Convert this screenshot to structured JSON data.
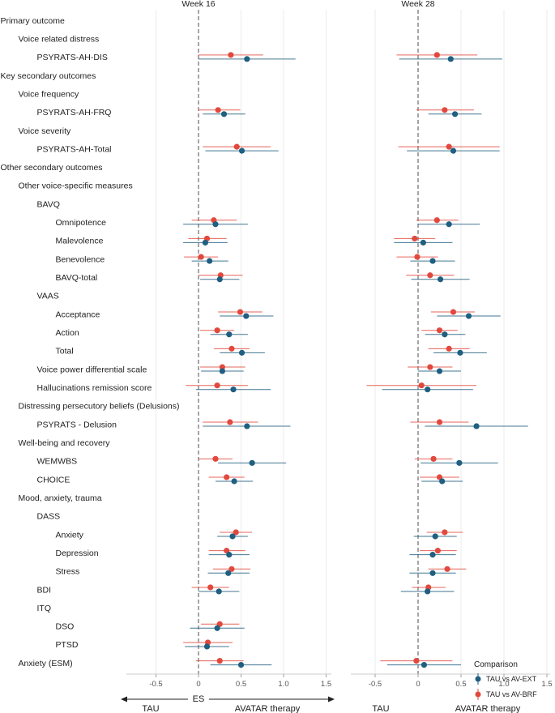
{
  "chart_data": {
    "type": "forest",
    "panels": [
      "Week 16",
      "Week 28"
    ],
    "xlabel_center": "ES",
    "xlabel_left": "TAU",
    "xlabel_right": "AVATAR therapy",
    "xlim": [
      -0.85,
      1.6
    ],
    "xticks": [
      -0.5,
      0.0,
      0.5,
      1.0,
      1.5
    ],
    "xtick_labels": [
      "-0.5",
      "0",
      "0.5",
      "1.0",
      "1.5"
    ],
    "colors": {
      "ext": "#1f5f80",
      "brf": "#e2493e",
      "grid": "#e6e6e6",
      "zero": "#777777"
    },
    "legend": {
      "title": "Comparison",
      "items": [
        "TAU vs AV-EXT",
        "TAU vs AV-BRF"
      ],
      "position": "bottom-right"
    },
    "rows": [
      {
        "label": "Primary outcome",
        "level": 0
      },
      {
        "label": "Voice related distress",
        "level": 1
      },
      {
        "label": "PSYRATS-AH-DIS",
        "level": 2,
        "w16": {
          "ext": [
            0.57,
            0.0,
            1.14
          ],
          "brf": [
            0.38,
            0.0,
            0.76
          ]
        },
        "w28": {
          "ext": [
            0.38,
            -0.22,
            0.98
          ],
          "brf": [
            0.22,
            -0.25,
            0.69
          ]
        }
      },
      {
        "label": "Key secondary outcomes",
        "level": 0
      },
      {
        "label": "Voice frequency",
        "level": 1
      },
      {
        "label": "PSYRATS-AH-FRQ",
        "level": 2,
        "w16": {
          "ext": [
            0.3,
            0.05,
            0.55
          ],
          "brf": [
            0.23,
            0.0,
            0.49
          ]
        },
        "w28": {
          "ext": [
            0.43,
            0.12,
            0.74
          ],
          "brf": [
            0.31,
            -0.02,
            0.65
          ]
        }
      },
      {
        "label": "Voice severity",
        "level": 1
      },
      {
        "label": "PSYRATS-AH-Total",
        "level": 2,
        "w16": {
          "ext": [
            0.51,
            0.08,
            0.94
          ],
          "brf": [
            0.45,
            0.05,
            0.85
          ]
        },
        "w28": {
          "ext": [
            0.41,
            -0.13,
            0.95
          ],
          "brf": [
            0.36,
            -0.23,
            0.95
          ]
        }
      },
      {
        "label": "Other secondary outcomes",
        "level": 0
      },
      {
        "label": "Other voice-specific measures",
        "level": 1
      },
      {
        "label": "BAVQ",
        "level": 2
      },
      {
        "label": "Omnipotence",
        "level": 3,
        "w16": {
          "ext": [
            0.2,
            -0.18,
            0.58
          ],
          "brf": [
            0.18,
            -0.08,
            0.45
          ]
        },
        "w28": {
          "ext": [
            0.36,
            0.0,
            0.72
          ],
          "brf": [
            0.22,
            -0.02,
            0.47
          ]
        }
      },
      {
        "label": "Malevolence",
        "level": 3,
        "w16": {
          "ext": [
            0.08,
            -0.18,
            0.34
          ],
          "brf": [
            0.1,
            -0.12,
            0.33
          ]
        },
        "w28": {
          "ext": [
            0.06,
            -0.28,
            0.4
          ],
          "brf": [
            -0.04,
            -0.28,
            0.2
          ]
        }
      },
      {
        "label": "Benevolence",
        "level": 3,
        "w16": {
          "ext": [
            0.13,
            -0.08,
            0.35
          ],
          "brf": [
            0.03,
            -0.17,
            0.23
          ]
        },
        "w28": {
          "ext": [
            0.17,
            -0.09,
            0.43
          ],
          "brf": [
            -0.01,
            -0.25,
            0.23
          ]
        }
      },
      {
        "label": "BAVQ-total",
        "level": 3,
        "w16": {
          "ext": [
            0.25,
            0.02,
            0.48
          ],
          "brf": [
            0.26,
            0.0,
            0.52
          ]
        },
        "w28": {
          "ext": [
            0.26,
            -0.08,
            0.6
          ],
          "brf": [
            0.14,
            -0.14,
            0.42
          ]
        }
      },
      {
        "label": "VAAS",
        "level": 2
      },
      {
        "label": "Acceptance",
        "level": 3,
        "w16": {
          "ext": [
            0.56,
            0.25,
            0.88
          ],
          "brf": [
            0.49,
            0.23,
            0.75
          ]
        },
        "w28": {
          "ext": [
            0.59,
            0.22,
            0.96
          ],
          "brf": [
            0.41,
            0.15,
            0.66
          ]
        }
      },
      {
        "label": "Action",
        "level": 3,
        "w16": {
          "ext": [
            0.36,
            0.14,
            0.58
          ],
          "brf": [
            0.22,
            0.02,
            0.42
          ]
        },
        "w28": {
          "ext": [
            0.31,
            0.08,
            0.55
          ],
          "brf": [
            0.25,
            0.04,
            0.46
          ]
        }
      },
      {
        "label": "Total",
        "level": 3,
        "w16": {
          "ext": [
            0.51,
            0.25,
            0.78
          ],
          "brf": [
            0.39,
            0.18,
            0.6
          ]
        },
        "w28": {
          "ext": [
            0.49,
            0.18,
            0.8
          ],
          "brf": [
            0.36,
            0.12,
            0.6
          ]
        }
      },
      {
        "label": "Voice power differential scale",
        "level": 2,
        "w16": {
          "ext": [
            0.28,
            0.03,
            0.53
          ],
          "brf": [
            0.28,
            0.02,
            0.55
          ]
        },
        "w28": {
          "ext": [
            0.25,
            0.0,
            0.5
          ],
          "brf": [
            0.14,
            -0.12,
            0.4
          ]
        }
      },
      {
        "label": "Hallucinations remission score",
        "level": 2,
        "w16": {
          "ext": [
            0.41,
            -0.03,
            0.85
          ],
          "brf": [
            0.22,
            -0.15,
            0.58
          ]
        },
        "w28": {
          "ext": [
            0.11,
            -0.42,
            0.64
          ],
          "brf": [
            0.04,
            -0.6,
            0.68
          ]
        }
      },
      {
        "label": "Distressing persecutory beliefs (Delusions)",
        "level": 1
      },
      {
        "label": "PSYRATS - Delusion",
        "level": 2,
        "w16": {
          "ext": [
            0.57,
            0.05,
            1.08
          ],
          "brf": [
            0.37,
            0.05,
            0.7
          ]
        },
        "w28": {
          "ext": [
            0.68,
            0.08,
            1.28
          ],
          "brf": [
            0.25,
            -0.09,
            0.59
          ]
        }
      },
      {
        "label": "Well-being and recovery",
        "level": 1
      },
      {
        "label": "WEMWBS",
        "level": 2,
        "w16": {
          "ext": [
            0.63,
            0.23,
            1.03
          ],
          "brf": [
            0.2,
            0.0,
            0.4
          ]
        },
        "w28": {
          "ext": [
            0.48,
            0.03,
            0.93
          ],
          "brf": [
            0.18,
            -0.04,
            0.4
          ]
        }
      },
      {
        "label": "CHOICE",
        "level": 2,
        "w16": {
          "ext": [
            0.42,
            0.2,
            0.64
          ],
          "brf": [
            0.33,
            0.12,
            0.54
          ]
        },
        "w28": {
          "ext": [
            0.28,
            0.04,
            0.52
          ],
          "brf": [
            0.25,
            0.02,
            0.48
          ]
        }
      },
      {
        "label": "Mood, anxiety, trauma",
        "level": 1
      },
      {
        "label": "DASS",
        "level": 2
      },
      {
        "label": "Anxiety",
        "level": 3,
        "w16": {
          "ext": [
            0.4,
            0.22,
            0.58
          ],
          "brf": [
            0.44,
            0.25,
            0.63
          ]
        },
        "w28": {
          "ext": [
            0.2,
            -0.05,
            0.45
          ],
          "brf": [
            0.31,
            0.1,
            0.52
          ]
        }
      },
      {
        "label": "Depression",
        "level": 3,
        "w16": {
          "ext": [
            0.36,
            0.12,
            0.6
          ],
          "brf": [
            0.33,
            0.12,
            0.55
          ]
        },
        "w28": {
          "ext": [
            0.17,
            -0.1,
            0.44
          ],
          "brf": [
            0.23,
            0.02,
            0.45
          ]
        }
      },
      {
        "label": "Stress",
        "level": 3,
        "w16": {
          "ext": [
            0.35,
            0.11,
            0.6
          ],
          "brf": [
            0.39,
            0.17,
            0.61
          ]
        },
        "w28": {
          "ext": [
            0.17,
            -0.1,
            0.44
          ],
          "brf": [
            0.34,
            0.12,
            0.56
          ]
        }
      },
      {
        "label": "BDI",
        "level": 2,
        "w16": {
          "ext": [
            0.24,
            0.0,
            0.48
          ],
          "brf": [
            0.14,
            -0.08,
            0.36
          ]
        },
        "w28": {
          "ext": [
            0.11,
            -0.2,
            0.42
          ],
          "brf": [
            0.12,
            -0.07,
            0.32
          ]
        }
      },
      {
        "label": "ITQ",
        "level": 2
      },
      {
        "label": "DSO",
        "level": 3,
        "w16": {
          "ext": [
            0.22,
            -0.1,
            0.54
          ],
          "brf": [
            0.25,
            0.03,
            0.48
          ]
        },
        "w28": null
      },
      {
        "label": "PTSD",
        "level": 3,
        "w16": {
          "ext": [
            0.1,
            -0.16,
            0.36
          ],
          "brf": [
            0.11,
            -0.18,
            0.4
          ]
        },
        "w28": null
      },
      {
        "label": "Anxiety (ESM)",
        "level": 1,
        "w16": {
          "ext": [
            0.5,
            0.14,
            0.86
          ],
          "brf": [
            0.25,
            -0.03,
            0.53
          ]
        },
        "w28": {
          "ext": [
            0.07,
            -0.36,
            0.5
          ],
          "brf": [
            -0.02,
            -0.44,
            0.4
          ]
        }
      }
    ]
  }
}
